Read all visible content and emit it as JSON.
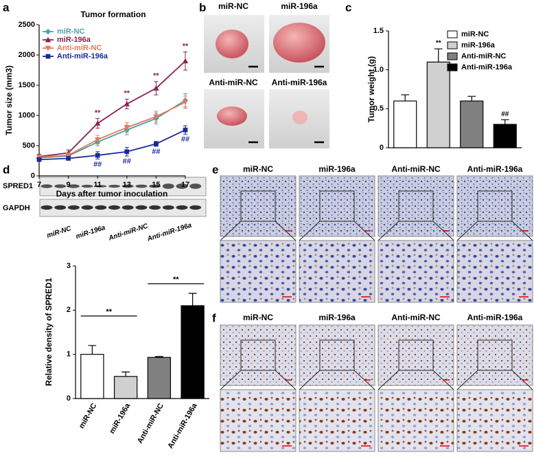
{
  "panel_labels": [
    "a",
    "b",
    "c",
    "d",
    "e",
    "f"
  ],
  "chart_data": [
    {
      "type": "line",
      "title": "Tumor formation",
      "y_label": "Tumor size (mm3)",
      "x_label": "Days after tumor inoculation",
      "x": [
        7,
        9,
        11,
        13,
        15,
        17
      ],
      "xlim": [
        7,
        17
      ],
      "xticks": [
        7,
        9,
        11,
        13,
        15,
        17
      ],
      "ylim": [
        0,
        2500
      ],
      "yticks": [
        0,
        500,
        1000,
        1500,
        2000,
        2500
      ],
      "legend": "upper left",
      "series": [
        {
          "name": "miR-NC",
          "color": "#4aa3a3",
          "marker": "diamond",
          "values": [
            300,
            330,
            560,
            760,
            950,
            1250
          ],
          "errors": [
            30,
            40,
            60,
            80,
            90,
            110
          ]
        },
        {
          "name": "miR-196a",
          "color": "#8b2252",
          "marker": "triangle",
          "values": [
            320,
            380,
            870,
            1190,
            1450,
            1900
          ],
          "errors": [
            40,
            50,
            80,
            80,
            110,
            150
          ]
        },
        {
          "name": "Anti-miR-NC",
          "color": "#e07a5f",
          "marker": "triangle-down",
          "values": [
            310,
            340,
            600,
            800,
            980,
            1220
          ],
          "errors": [
            30,
            40,
            70,
            80,
            90,
            100
          ]
        },
        {
          "name": "Anti-miR-196a",
          "color": "#1a2a9a",
          "marker": "square",
          "values": [
            270,
            290,
            340,
            400,
            530,
            760
          ],
          "errors": [
            20,
            30,
            60,
            70,
            40,
            70
          ]
        }
      ],
      "annotations": [
        {
          "x": 11,
          "series": 1,
          "position": "above",
          "text": "**"
        },
        {
          "x": 13,
          "series": 1,
          "position": "above",
          "text": "**"
        },
        {
          "x": 15,
          "series": 1,
          "position": "above",
          "text": "**"
        },
        {
          "x": 17,
          "series": 1,
          "position": "above",
          "text": "**"
        },
        {
          "x": 11,
          "series": 3,
          "position": "below",
          "text": "##"
        },
        {
          "x": 13,
          "series": 3,
          "position": "below",
          "text": "##"
        },
        {
          "x": 15,
          "series": 3,
          "position": "below",
          "text": "##"
        },
        {
          "x": 17,
          "series": 3,
          "position": "below",
          "text": "##"
        }
      ]
    },
    {
      "type": "bar",
      "y_label": "Tumor weight (g)",
      "categories": [
        "miR-NC",
        "miR-196a",
        "Anti-miR-NC",
        "Anti-miR-196a"
      ],
      "values": [
        0.6,
        1.1,
        0.6,
        0.3
      ],
      "errors": [
        0.08,
        0.17,
        0.06,
        0.06
      ],
      "colors": [
        "#ffffff",
        "#d0d0d0",
        "#808080",
        "#000000"
      ],
      "legend": "upper right",
      "ylim": [
        0,
        1.5
      ],
      "yticks": [
        0,
        0.5,
        {
          "value": 1,
          "label": "1.0"
        },
        1.5
      ],
      "annotations": [
        {
          "index": 1,
          "text": "**"
        },
        {
          "index": 3,
          "text": "##"
        }
      ]
    },
    {
      "type": "bar",
      "y_label": "Relative density of SPRED1",
      "categories": [
        "miR-NC",
        "miR-196a",
        "Anti-miR-NC",
        "Anti-miR-196a"
      ],
      "values": [
        1.0,
        0.5,
        0.93,
        2.1
      ],
      "errors": [
        0.2,
        0.1,
        0.02,
        0.28
      ],
      "colors": [
        "#ffffff",
        "#d0d0d0",
        "#808080",
        "#000000"
      ],
      "ylim": [
        0,
        3
      ],
      "yticks": [
        0,
        1,
        2,
        3
      ],
      "brackets": [
        {
          "from": 0,
          "to": 1,
          "text": "**"
        },
        {
          "from": 2,
          "to": 3,
          "text": "**"
        }
      ]
    }
  ],
  "photos": {
    "labels": [
      "miR-NC",
      "miR-196a",
      "Anti-miR-NC",
      "Anti-miR-196a"
    ]
  },
  "blot": {
    "rows": [
      "SPRED1",
      "GAPDH"
    ],
    "lanes": [
      "miR-NC",
      "miR-196a",
      "Anti-miR-NC",
      "Anti-miR-196a"
    ]
  },
  "ihc_e": {
    "labels": [
      "miR-NC",
      "miR-196a",
      "Anti-miR-NC",
      "Anti-miR-196a"
    ]
  },
  "ihc_f": {
    "labels": [
      "miR-NC",
      "miR-196a",
      "Anti-miR-NC",
      "Anti-miR-196a"
    ]
  }
}
